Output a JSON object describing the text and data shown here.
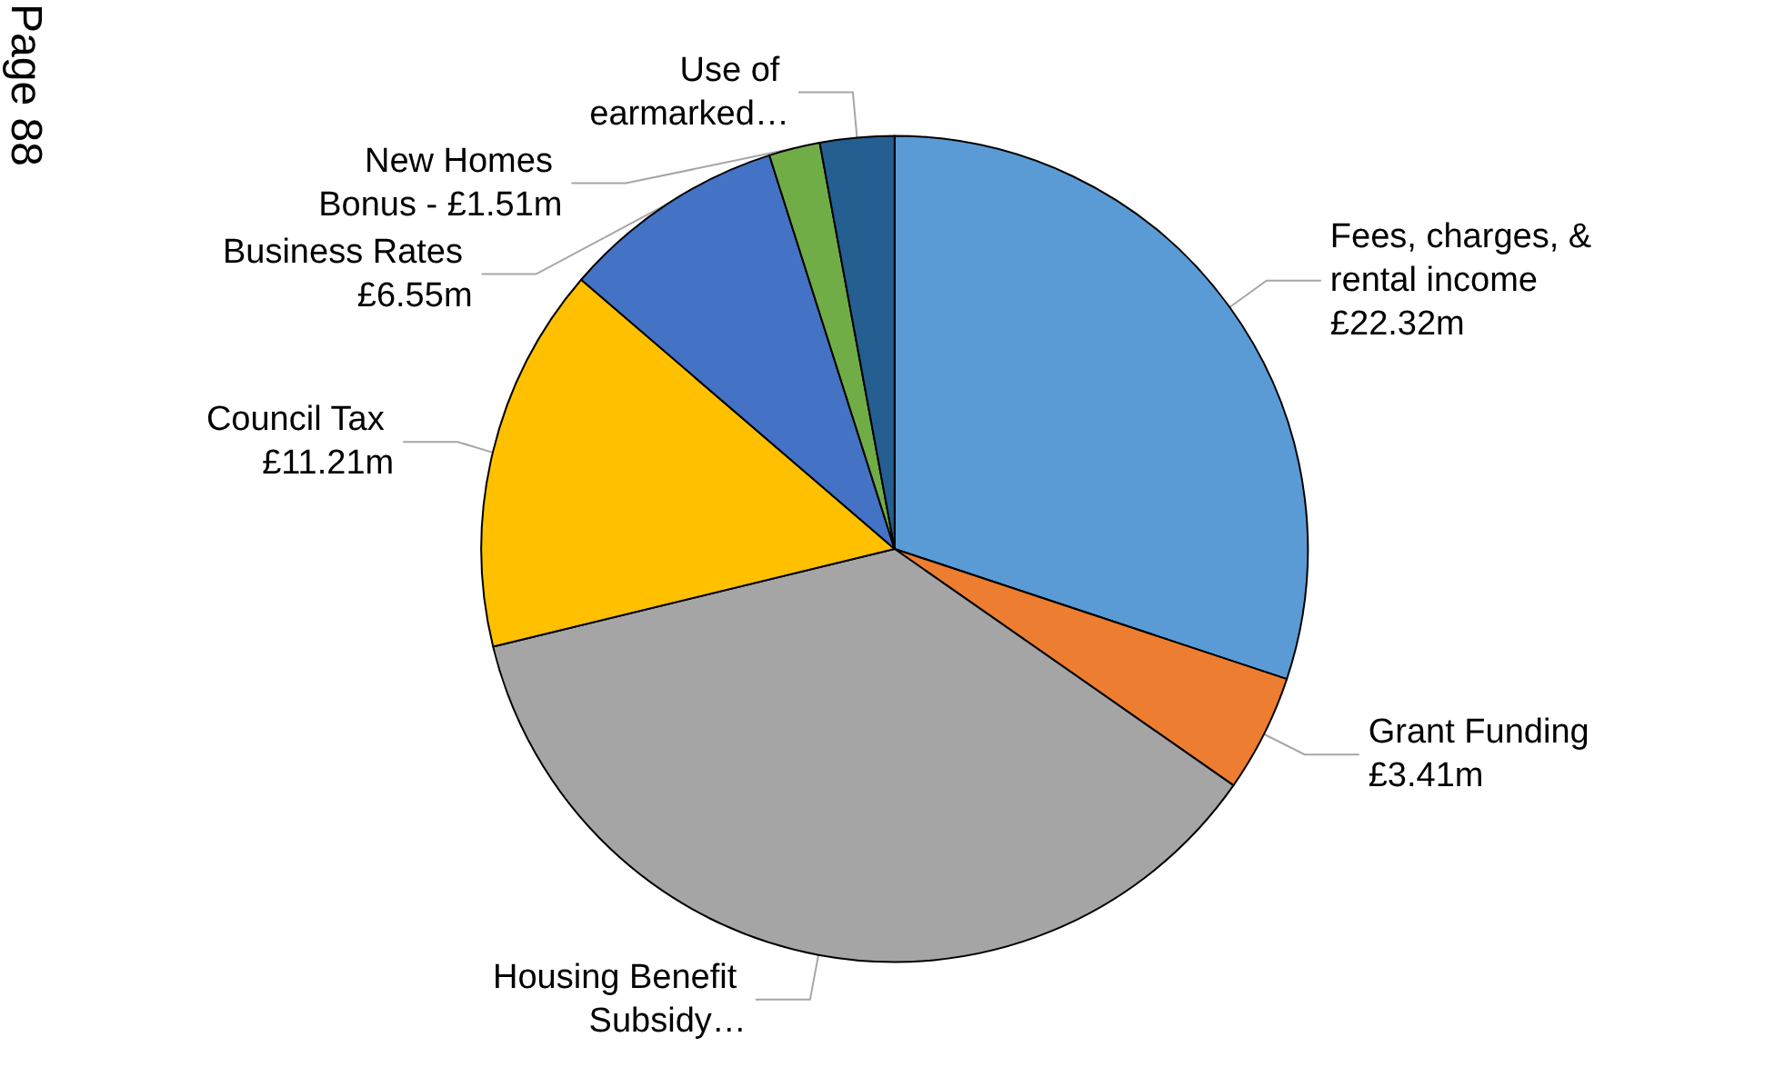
{
  "chart_data": {
    "type": "pie",
    "categories": [
      "Fees, charges, & rental income £22.32m",
      "Grant Funding £3.41m",
      "Housing Benefit Subsidy…",
      "Council Tax £11.21m",
      "Business Rates £6.55m",
      "New Homes Bonus - £1.51m",
      "Use of earmarked…"
    ],
    "values": [
      30.1,
      4.6,
      36.5,
      15.1,
      8.8,
      2.0,
      2.9
    ],
    "colors": [
      "#5b9bd5",
      "#ed7d31",
      "#a5a5a5",
      "#ffc000",
      "#4472c4",
      "#70ad47",
      "#255e91"
    ],
    "annotations": [
      "Page 88"
    ],
    "legend": false
  }
}
